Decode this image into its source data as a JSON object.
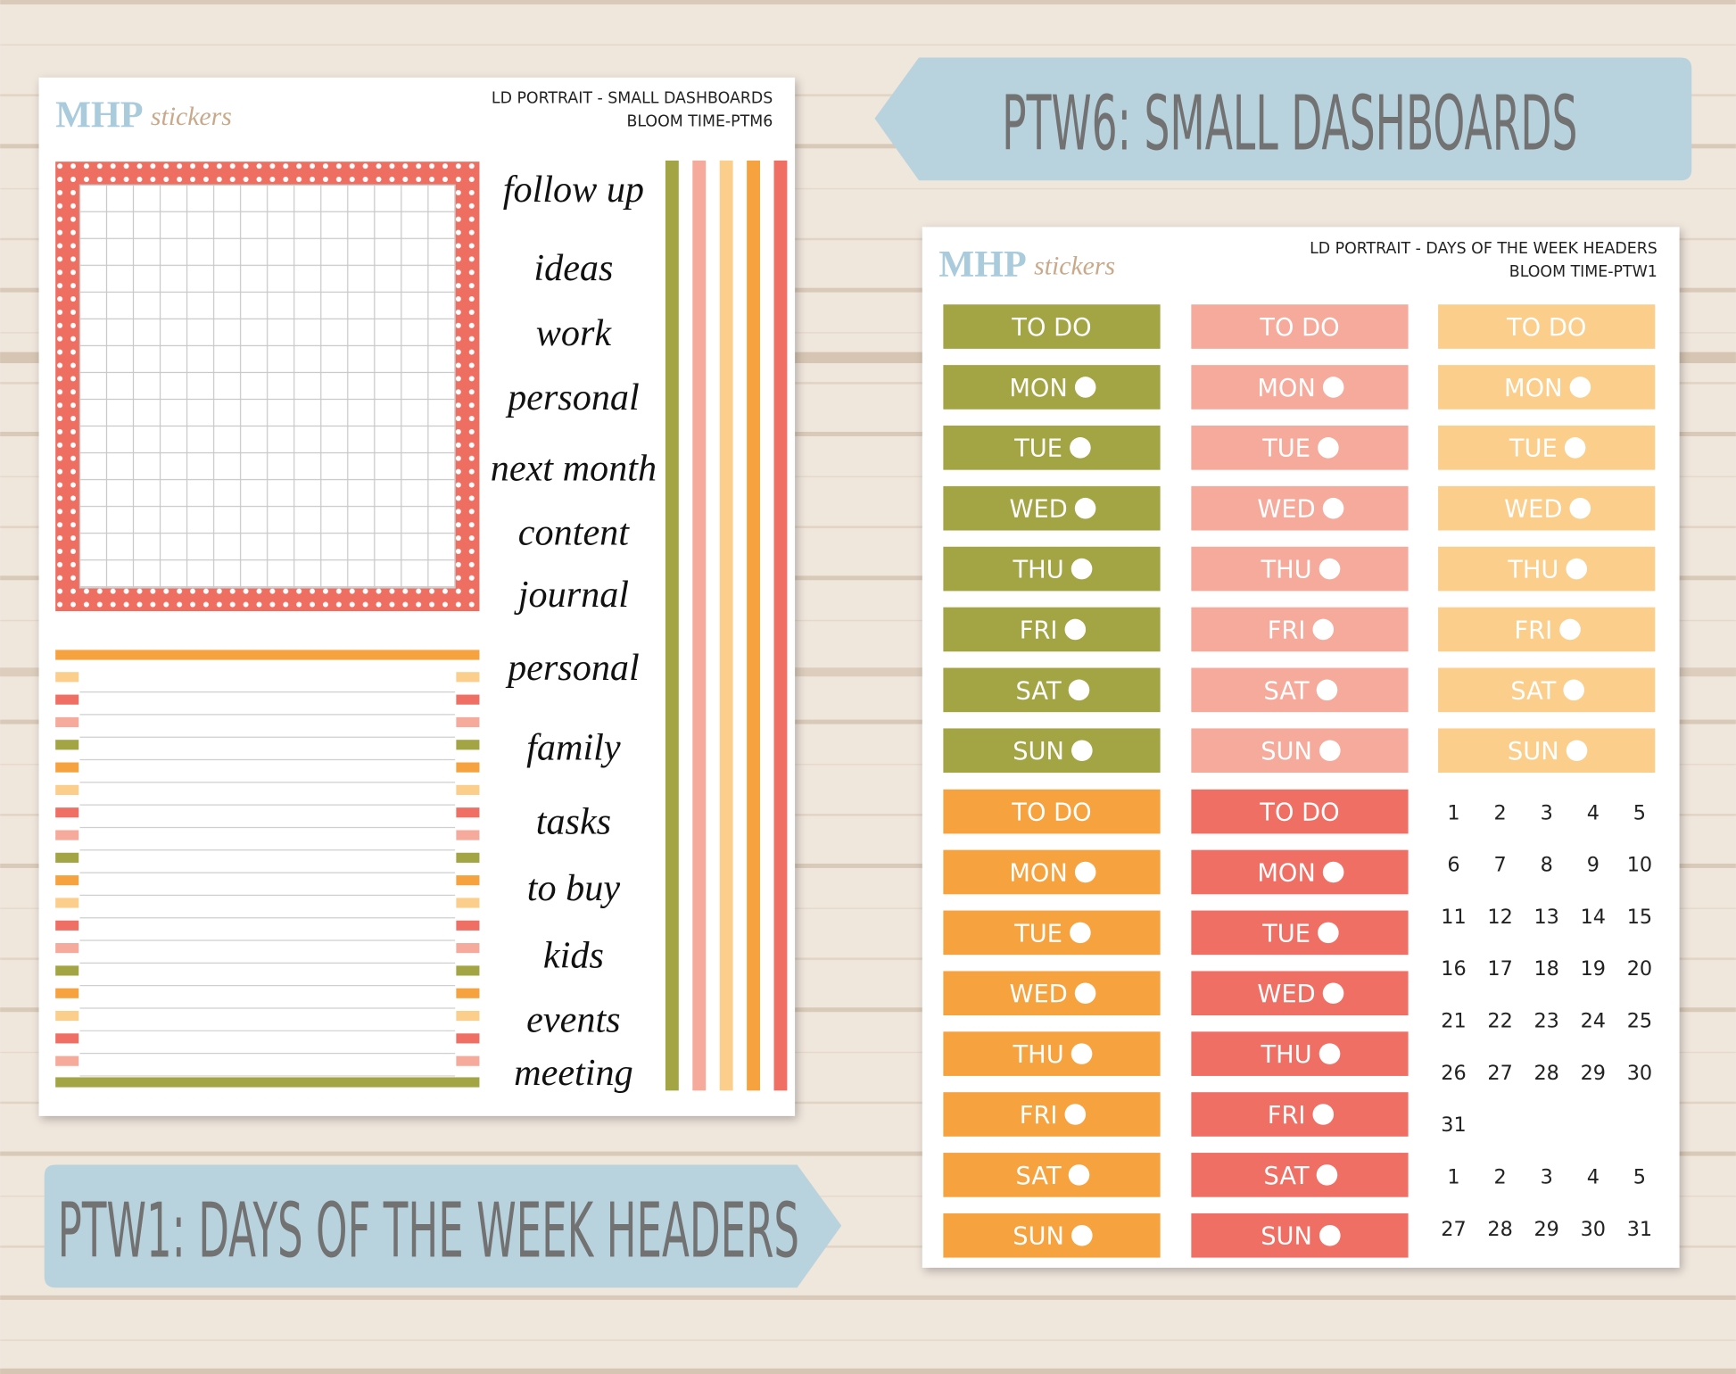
{
  "banners": {
    "top": "PTW6: SMALL DASHBOARDS",
    "bottom": "PTW1: DAYS OF THE WEEK HEADERS"
  },
  "left_sheet": {
    "brand": {
      "mark": "MHP",
      "script": "stickers"
    },
    "title": "LD PORTRAIT - SMALL DASHBOARDS",
    "subtitle": "BLOOM TIME-PTM6",
    "words": [
      "follow up",
      "ideas",
      "work",
      "personal",
      "next month",
      "content",
      "journal",
      "personal",
      "family",
      "tasks",
      "to buy",
      "kids",
      "events",
      "meeting"
    ]
  },
  "right_sheet": {
    "brand": {
      "mark": "MHP",
      "script": "stickers"
    },
    "title": "LD PORTRAIT - DAYS OF THE WEEK HEADERS",
    "subtitle": "BLOOM TIME-PTW1",
    "columns": [
      {
        "color": "#a3a443",
        "labels": [
          "TO DO",
          "MON",
          "TUE",
          "WED",
          "THU",
          "FRI",
          "SAT",
          "SUN"
        ]
      },
      {
        "color": "#f5aa9b",
        "labels": [
          "TO DO",
          "MON",
          "TUE",
          "WED",
          "THU",
          "FRI",
          "SAT",
          "SUN"
        ]
      },
      {
        "color": "#fbce8c",
        "labels": [
          "TO DO",
          "MON",
          "TUE",
          "WED",
          "THU",
          "FRI",
          "SAT",
          "SUN"
        ]
      },
      {
        "color": "#f6a23f",
        "labels": [
          "TO DO",
          "MON",
          "TUE",
          "WED",
          "THU",
          "FRI",
          "SAT",
          "SUN"
        ]
      },
      {
        "color": "#ef6f65",
        "labels": [
          "TO DO",
          "MON",
          "TUE",
          "WED",
          "THU",
          "FRI",
          "SAT",
          "SUN"
        ]
      }
    ],
    "calendar": [
      [
        1,
        2,
        3,
        4,
        5
      ],
      [
        6,
        7,
        8,
        9,
        10
      ],
      [
        11,
        12,
        13,
        14,
        15
      ],
      [
        16,
        17,
        18,
        19,
        20
      ],
      [
        21,
        22,
        23,
        24,
        25
      ],
      [
        26,
        27,
        28,
        29,
        30
      ],
      [
        31
      ],
      [
        1,
        2,
        3,
        4,
        5
      ],
      [
        27,
        28,
        29,
        30,
        31
      ]
    ]
  }
}
